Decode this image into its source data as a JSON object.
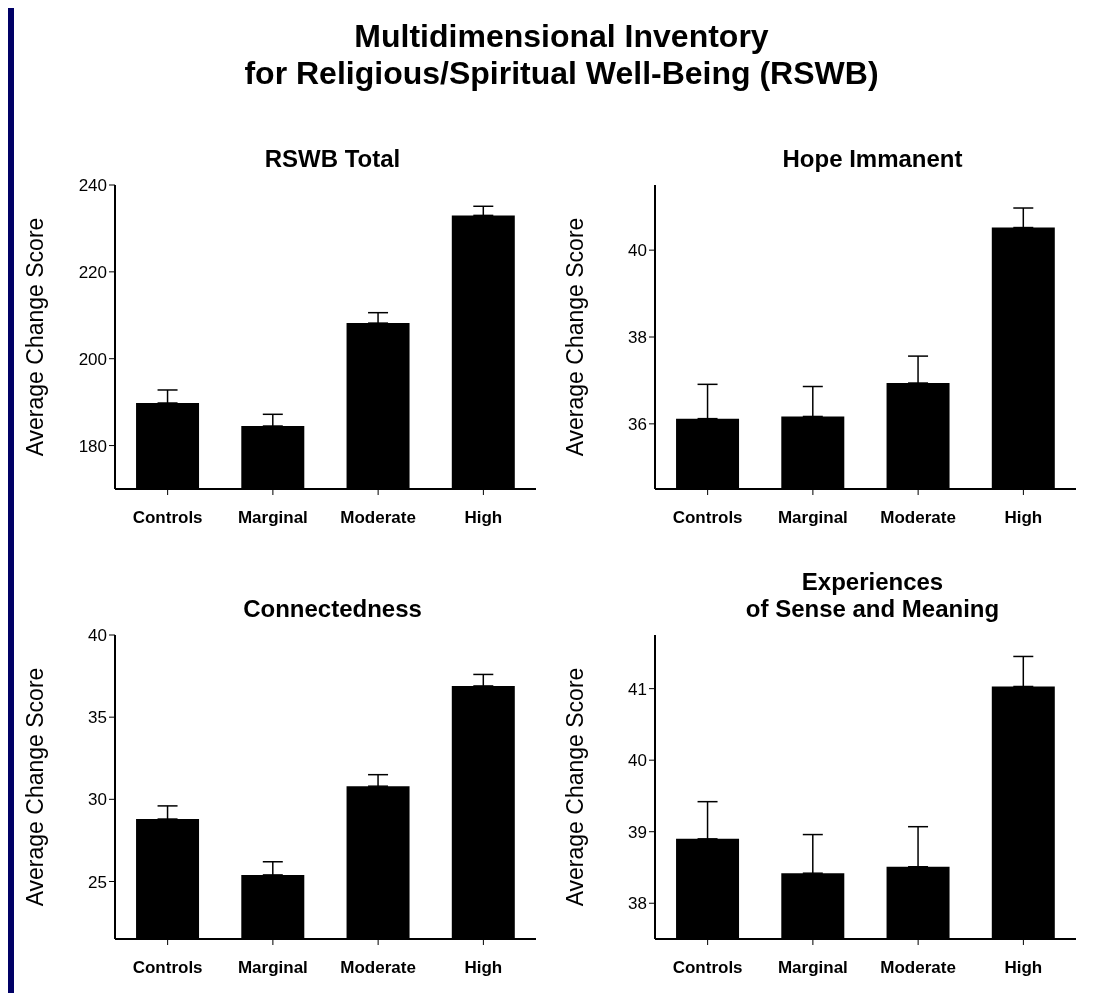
{
  "chart_data": [
    {
      "type": "other",
      "title": "Multidimensional Inventory\nfor Religious/Spiritual Well-Being (RSWB)"
    },
    {
      "type": "bar",
      "title": "RSWB Total",
      "ylabel": "Average Change Score",
      "categories": [
        "Controls",
        "Marginal",
        "Moderate",
        "High"
      ],
      "values": [
        189.8,
        184.5,
        208.2,
        233.0
      ],
      "errors": [
        [
          189.8,
          192.8
        ],
        [
          184.5,
          187.2
        ],
        [
          208.2,
          210.6
        ],
        [
          233.0,
          235.1
        ]
      ],
      "color": "#000000",
      "ylim": [
        170,
        240
      ],
      "yticks": [
        180,
        200,
        220,
        240
      ],
      "grid": false,
      "legend": false
    },
    {
      "type": "bar",
      "title": "Hope Immanent",
      "ylabel": "Average Change Score",
      "categories": [
        "Controls",
        "Marginal",
        "Moderate",
        "High"
      ],
      "values": [
        36.12,
        36.17,
        36.94,
        40.52
      ],
      "errors": [
        [
          36.12,
          36.91
        ],
        [
          36.17,
          36.86
        ],
        [
          36.94,
          37.56
        ],
        [
          40.52,
          40.97
        ]
      ],
      "color": "#000000",
      "ylim": [
        34.5,
        41.5
      ],
      "yticks": [
        36,
        38,
        40
      ],
      "grid": false,
      "legend": false
    },
    {
      "type": "bar",
      "title": "Connectedness",
      "ylabel": "Average Change Score",
      "categories": [
        "Controls",
        "Marginal",
        "Moderate",
        "High"
      ],
      "values": [
        28.8,
        25.4,
        30.8,
        36.9
      ],
      "errors": [
        [
          28.8,
          29.6
        ],
        [
          25.4,
          26.2
        ],
        [
          30.8,
          31.5
        ],
        [
          36.9,
          37.6
        ]
      ],
      "color": "#000000",
      "ylim": [
        21.5,
        40
      ],
      "yticks": [
        25,
        30,
        35,
        40
      ],
      "grid": false,
      "legend": false
    },
    {
      "type": "bar",
      "title": "Experiences\nof Sense and Meaning",
      "ylabel": "Average Change Score",
      "categories": [
        "Controls",
        "Marginal",
        "Moderate",
        "High"
      ],
      "values": [
        38.9,
        38.42,
        38.51,
        41.03
      ],
      "errors": [
        [
          38.9,
          39.42
        ],
        [
          38.42,
          38.96
        ],
        [
          38.51,
          39.07
        ],
        [
          41.03,
          41.45
        ]
      ],
      "color": "#000000",
      "ylim": [
        37.5,
        41.75
      ],
      "yticks": [
        38,
        39,
        40,
        41
      ],
      "grid": false,
      "legend": false
    }
  ]
}
